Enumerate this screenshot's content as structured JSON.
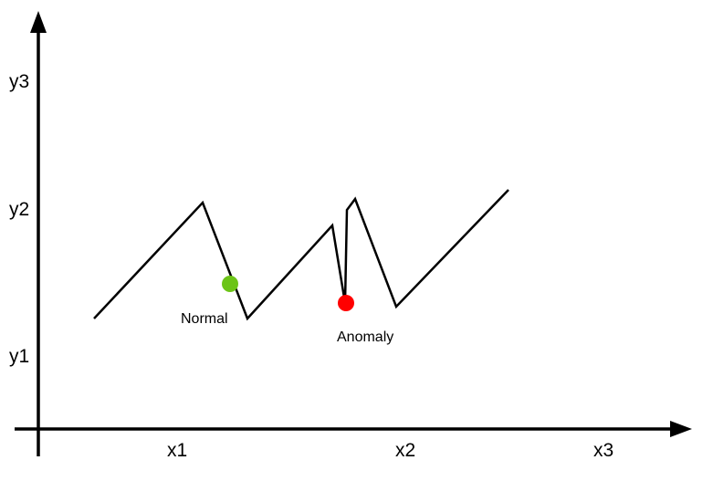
{
  "axes": {
    "x_ticks": [
      "x1",
      "x2",
      "x3"
    ],
    "y_ticks": [
      "y1",
      "y2",
      "y3"
    ]
  },
  "points": {
    "normal": {
      "label": "Normal",
      "color": "#6cc417"
    },
    "anomaly": {
      "label": "Anomaly",
      "color": "#ff0000"
    }
  },
  "colors": {
    "line": "#000000",
    "axis": "#000000"
  }
}
